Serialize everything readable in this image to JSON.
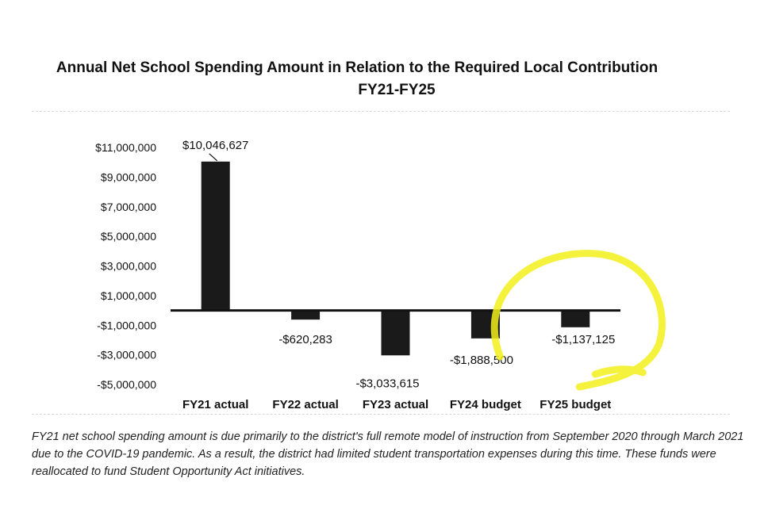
{
  "chart_data": {
    "type": "bar",
    "title": "Annual Net School Spending Amount in Relation to the Required Local Contribution",
    "subtitle": "FY21-FY25",
    "categories": [
      "FY21 actual",
      "FY22 actual",
      "FY23 actual",
      "FY24 budget",
      "FY25 budget"
    ],
    "values": [
      10046627,
      -620283,
      -3033615,
      -1888500,
      -1137125
    ],
    "data_labels": [
      "$10,046,627",
      "-$620,283",
      "-$3,033,615",
      "-$1,888,500",
      "-$1,137,125"
    ],
    "ylim": [
      -5000000,
      11000000
    ],
    "yticks": [
      11000000,
      9000000,
      7000000,
      5000000,
      3000000,
      1000000,
      -1000000,
      -3000000,
      -5000000
    ],
    "ytick_labels": [
      "$11,000,000",
      "$9,000,000",
      "$7,000,000",
      "$5,000,000",
      "$3,000,000",
      "$1,000,000",
      "-$1,000,000",
      "-$3,000,000",
      "-$5,000,000"
    ],
    "xlabel": "",
    "ylabel": "",
    "grid": false,
    "bar_color": "#1a1a1a",
    "highlight_color": "#f2f01a"
  },
  "footnote": "FY21 net school spending amount is due primarily to the district's full remote model of instruction from September 2020 through March 2021 due to the COVID-19 pandemic.  As a result, the district had limited student transportation expenses during this time.  These funds were reallocated to fund Student Opportunity Act initiatives."
}
